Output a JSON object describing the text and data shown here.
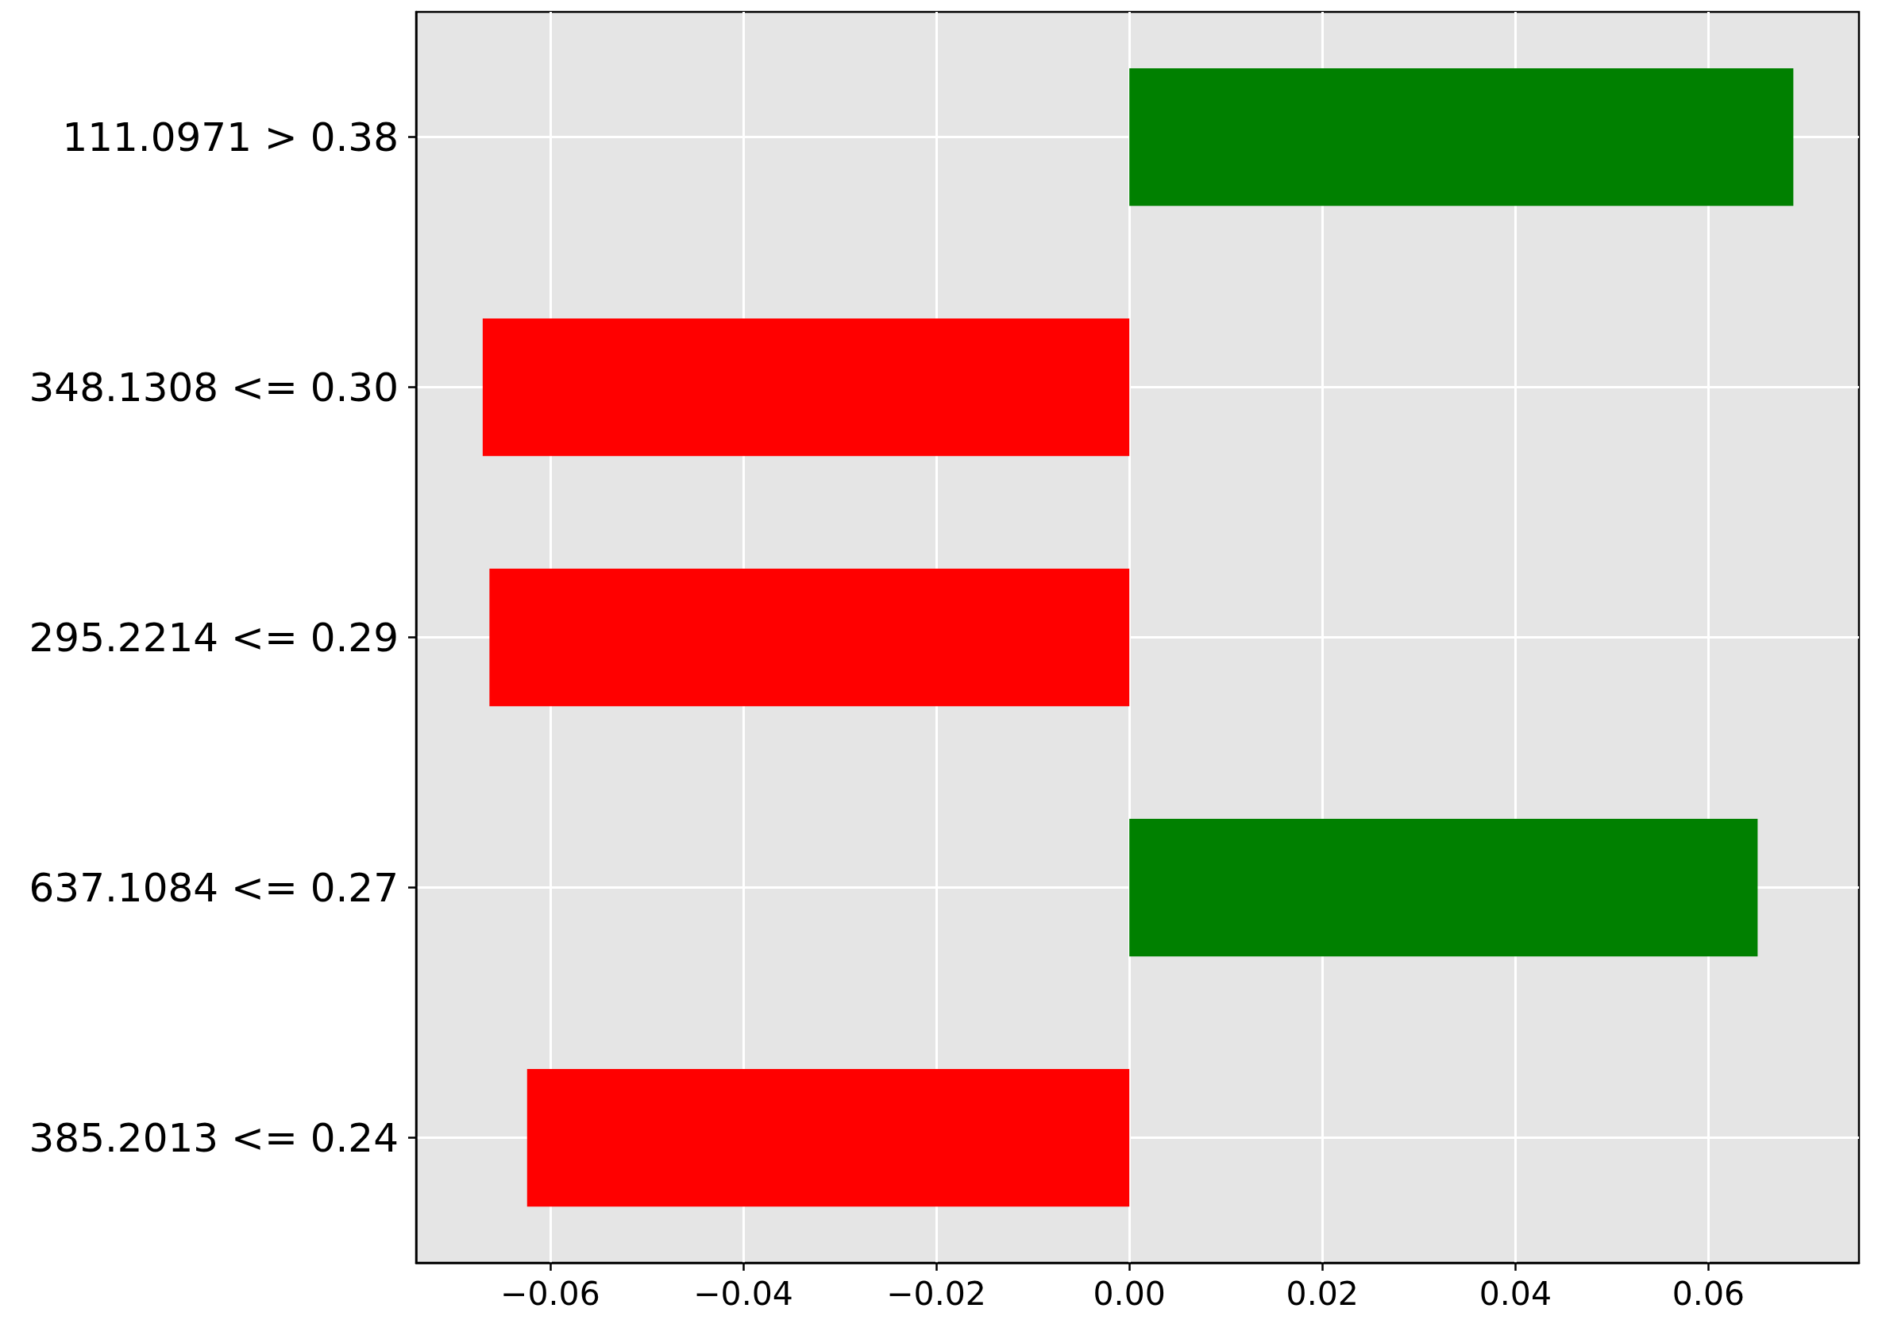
{
  "chart_data": {
    "type": "bar",
    "orientation": "horizontal",
    "categories": [
      "111.0971 > 0.38",
      "348.1308 <= 0.30",
      "295.2214 <= 0.29",
      "637.1084 <= 0.27",
      "385.2013 <= 0.24"
    ],
    "values": [
      0.0688,
      -0.067,
      -0.0663,
      0.0651,
      -0.0624
    ],
    "colors": [
      "#008000",
      "#ff0000",
      "#ff0000",
      "#008000",
      "#ff0000"
    ],
    "xlim": [
      -0.0739,
      0.0756
    ],
    "xticks": [
      {
        "value": -0.06,
        "label": "−0.06"
      },
      {
        "value": -0.04,
        "label": "−0.04"
      },
      {
        "value": -0.02,
        "label": "−0.02"
      },
      {
        "value": 0,
        "label": "0.00"
      },
      {
        "value": 0.02,
        "label": "0.02"
      },
      {
        "value": 0.04,
        "label": "0.04"
      },
      {
        "value": 0.06,
        "label": "0.06"
      }
    ],
    "grid": true
  }
}
